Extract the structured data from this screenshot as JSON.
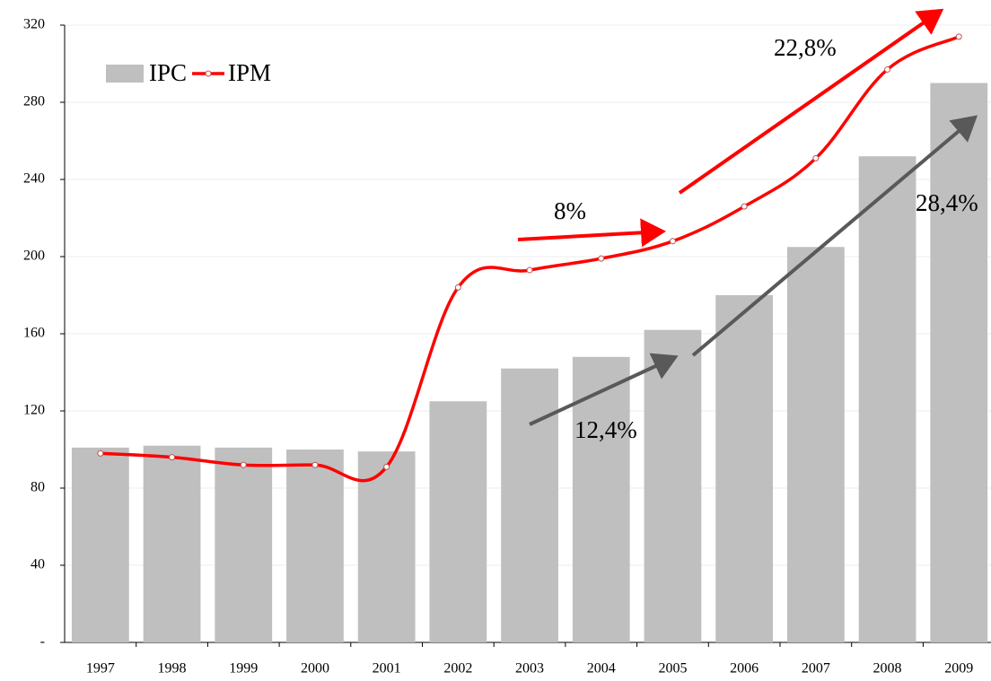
{
  "chart_data": {
    "type": "bar_line",
    "categories": [
      "1997",
      "1998",
      "1999",
      "2000",
      "2001",
      "2002",
      "2003",
      "2004",
      "2005",
      "2006",
      "2007",
      "2008",
      "2009"
    ],
    "series": [
      {
        "name": "IPC",
        "type": "bar",
        "color": "#bfbfbf",
        "values": [
          101,
          102,
          101,
          100,
          99,
          125,
          142,
          148,
          162,
          180,
          205,
          252,
          290
        ]
      },
      {
        "name": "IPM",
        "type": "line",
        "color": "#ff0000",
        "values": [
          98,
          96,
          92,
          92,
          91,
          184,
          193,
          199,
          208,
          226,
          251,
          297,
          314
        ]
      }
    ],
    "ylim": [
      0,
      320
    ],
    "yticks": [
      {
        "value": 0,
        "label": "-"
      },
      40,
      80,
      120,
      160,
      200,
      240,
      280,
      320
    ],
    "grid": true,
    "legend": "top-left",
    "annotations": [
      "8%",
      "22,8%",
      "12,4%",
      "28,4%"
    ]
  }
}
